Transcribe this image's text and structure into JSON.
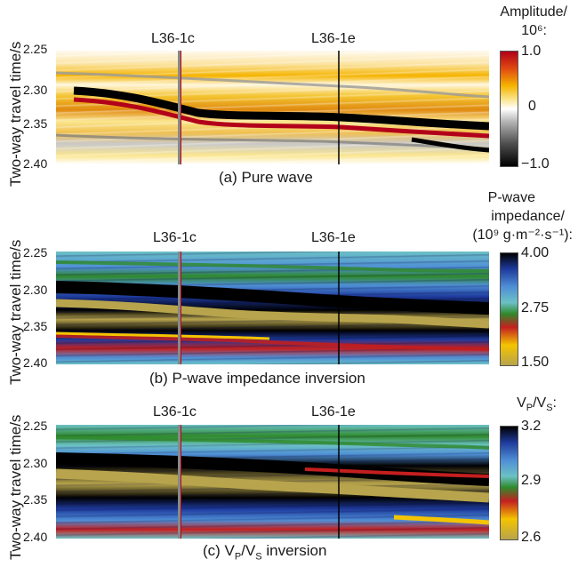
{
  "panels": [
    {
      "id": "a",
      "ylabel": "Two-way travel time/s",
      "yticks": [
        "2.25",
        "2.30",
        "2.35",
        "2.40"
      ],
      "wells": [
        "L36-1c",
        "L36-1e"
      ],
      "caption": "(a) Pure wave",
      "colorbar": {
        "title_line1": "Amplitude/",
        "title_line2": "10⁶:",
        "ticks": [
          "1.0",
          "0",
          "−1.0"
        ],
        "colors": [
          "#b3001a",
          "#e04a10",
          "#f5b400",
          "#fbe690",
          "#ffffff",
          "#b0b0b0",
          "#505050",
          "#000000"
        ]
      }
    },
    {
      "id": "b",
      "ylabel": "Two-way travel time/s",
      "yticks": [
        "2.25",
        "2.30",
        "2.35",
        "2.40"
      ],
      "wells": [
        "L36-1c",
        "L36-1e"
      ],
      "caption": "(b) P-wave impedance inversion",
      "colorbar": {
        "title_line1": "P-wave",
        "title_line2": "impedance/",
        "title_line3": "(10⁹ g·m⁻²·s⁻¹):",
        "ticks": [
          "4.00",
          "2.75",
          "1.50"
        ],
        "colors": [
          "#000000",
          "#1e3a9c",
          "#4f8fd6",
          "#6cc1c6",
          "#2f8a2b",
          "#c41f1f",
          "#f4c400",
          "#b7a44c"
        ]
      }
    },
    {
      "id": "c",
      "ylabel": "Two-way travel time/s",
      "yticks": [
        "2.25",
        "2.30",
        "2.35",
        "2.40"
      ],
      "wells": [
        "L36-1c",
        "L36-1e"
      ],
      "caption_pre": "(c) V",
      "caption_sub1": "P",
      "caption_mid": "/V",
      "caption_sub2": "S",
      "caption_post": " inversion",
      "colorbar": {
        "title_pre": "V",
        "title_sub1": "P",
        "title_mid": "/V",
        "title_sub2": "S",
        "title_post": ":",
        "ticks": [
          "3.2",
          "2.9",
          "2.6"
        ],
        "colors": [
          "#000000",
          "#1e3a9c",
          "#4f8fd6",
          "#6cc1c6",
          "#2f8a2b",
          "#c41f1f",
          "#f4c400",
          "#b7a44c"
        ]
      }
    }
  ]
}
